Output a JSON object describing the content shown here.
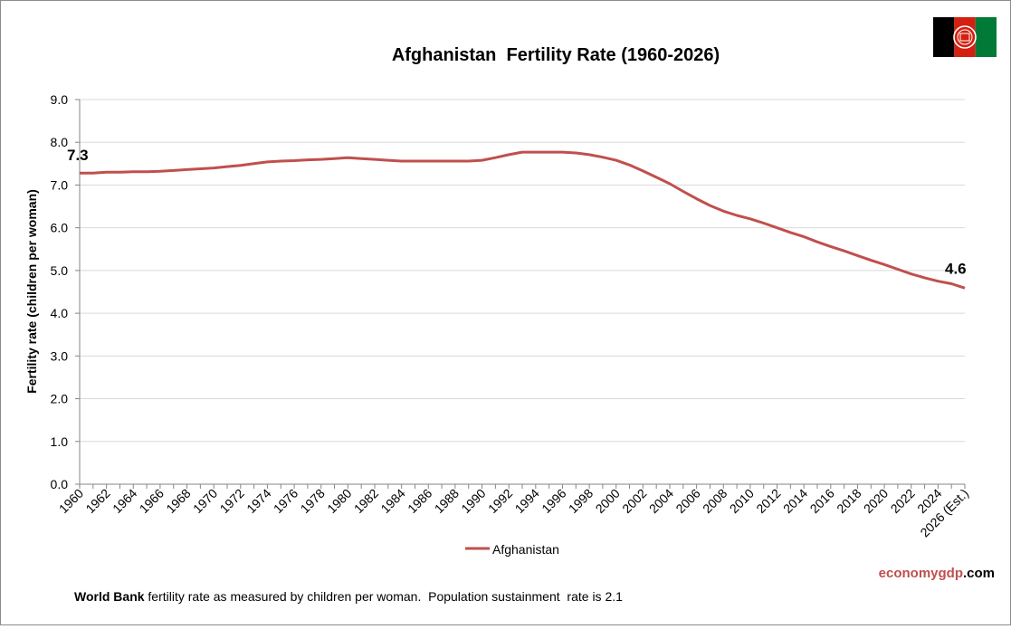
{
  "chart_data": {
    "type": "line",
    "title": "Afghanistan  Fertility Rate (1960-2026)",
    "xlabel": "",
    "ylabel": "Fertility rate (children per woman)",
    "ylim": [
      0,
      9
    ],
    "yticks": [
      "0.0",
      "1.0",
      "2.0",
      "3.0",
      "4.0",
      "5.0",
      "6.0",
      "7.0",
      "8.0",
      "9.0"
    ],
    "x": [
      "1960",
      "1961",
      "1962",
      "1963",
      "1964",
      "1965",
      "1966",
      "1967",
      "1968",
      "1969",
      "1970",
      "1971",
      "1972",
      "1973",
      "1974",
      "1975",
      "1976",
      "1977",
      "1978",
      "1979",
      "1980",
      "1981",
      "1982",
      "1983",
      "1984",
      "1985",
      "1986",
      "1987",
      "1988",
      "1989",
      "1990",
      "1991",
      "1992",
      "1993",
      "1994",
      "1995",
      "1996",
      "1997",
      "1998",
      "1999",
      "2000",
      "2001",
      "2002",
      "2003",
      "2004",
      "2005",
      "2006",
      "2007",
      "2008",
      "2009",
      "2010",
      "2011",
      "2012",
      "2013",
      "2014",
      "2015",
      "2016",
      "2017",
      "2018",
      "2019",
      "2020",
      "2021",
      "2022",
      "2023",
      "2024",
      "2025",
      "2026 (Est.)"
    ],
    "xtick_labels": [
      "1960",
      "1962",
      "1964",
      "1966",
      "1968",
      "1970",
      "1972",
      "1974",
      "1976",
      "1978",
      "1980",
      "1982",
      "1984",
      "1986",
      "1988",
      "1990",
      "1992",
      "1994",
      "1996",
      "1998",
      "2000",
      "2002",
      "2004",
      "2006",
      "2008",
      "2010",
      "2012",
      "2014",
      "2016",
      "2018",
      "2020",
      "2022",
      "2024",
      "2026 (Est.)"
    ],
    "series": [
      {
        "name": "Afghanistan",
        "color": "#c0504d",
        "values": [
          7.28,
          7.28,
          7.3,
          7.3,
          7.31,
          7.31,
          7.32,
          7.34,
          7.36,
          7.38,
          7.4,
          7.43,
          7.46,
          7.5,
          7.54,
          7.56,
          7.57,
          7.59,
          7.6,
          7.62,
          7.64,
          7.62,
          7.6,
          7.58,
          7.56,
          7.56,
          7.56,
          7.56,
          7.56,
          7.56,
          7.58,
          7.64,
          7.71,
          7.77,
          7.77,
          7.77,
          7.77,
          7.75,
          7.71,
          7.65,
          7.58,
          7.47,
          7.33,
          7.18,
          7.03,
          6.85,
          6.68,
          6.52,
          6.39,
          6.29,
          6.21,
          6.11,
          6.0,
          5.89,
          5.79,
          5.67,
          5.56,
          5.46,
          5.35,
          5.24,
          5.14,
          5.03,
          4.92,
          4.83,
          4.75,
          4.69,
          4.59
        ]
      }
    ],
    "annotations": [
      {
        "text": "7.3",
        "point": "first"
      },
      {
        "text": "4.6",
        "point": "last"
      }
    ],
    "legend": {
      "label": "Afghanistan",
      "position": "bottom"
    },
    "grid": true
  },
  "flag": {
    "name": "afghanistan-flag",
    "colors": [
      "#000000",
      "#d32011",
      "#007a36"
    ]
  },
  "footnote": {
    "bold": "World Bank",
    "text": " fertility rate as measured by children per woman.  Population sustainment  rate is 2.1"
  },
  "credit": {
    "part1": "economygdp",
    "part2": ".com"
  }
}
